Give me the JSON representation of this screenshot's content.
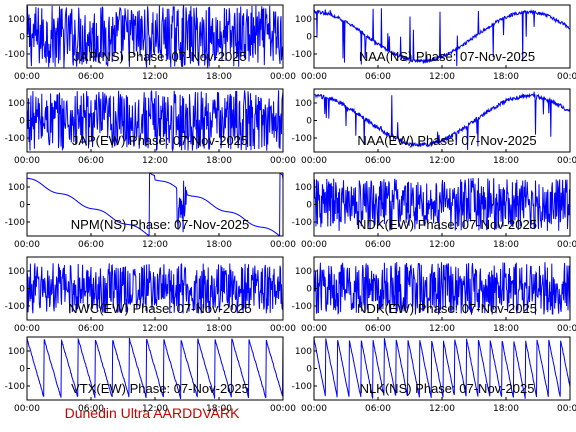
{
  "footer": "Dunedin Ultra AARDDVARK",
  "colors": {
    "trace": "#0000ff",
    "axis": "#000000",
    "footer": "#cc0000"
  },
  "chart_data": [
    {
      "type": "line",
      "title": "JAP(NS) Phase: 07-Nov-2025",
      "xlim": [
        0,
        24
      ],
      "ylim": [
        -180,
        180
      ],
      "x_ticks": [
        "00:00",
        "06:00",
        "12:00",
        "18:00",
        "00:00"
      ],
      "y_ticks": [
        "100",
        "0",
        "-100"
      ],
      "behavior": "noise",
      "density": 1.0
    },
    {
      "type": "line",
      "title": "NAA(NS) Phase: 07-Nov-2025",
      "xlim": [
        0,
        24
      ],
      "ylim": [
        -180,
        180
      ],
      "x_ticks": [
        "00:00",
        "06:00",
        "12:00",
        "18:00",
        "00:00"
      ],
      "y_ticks": [
        "100",
        "0",
        "-100"
      ],
      "behavior": "smooth",
      "density": 0.3
    },
    {
      "type": "line",
      "title": "JAP(EW) Phase: 07-Nov-2025",
      "xlim": [
        0,
        24
      ],
      "ylim": [
        -180,
        180
      ],
      "x_ticks": [
        "00:00",
        "06:00",
        "12:00",
        "18:00",
        "00:00"
      ],
      "y_ticks": [
        "100",
        "0",
        "-100"
      ],
      "behavior": "noise",
      "density": 0.9
    },
    {
      "type": "line",
      "title": "NAA(EW) Phase: 07-Nov-2025",
      "xlim": [
        0,
        24
      ],
      "ylim": [
        -180,
        180
      ],
      "x_ticks": [
        "00:00",
        "06:00",
        "12:00",
        "18:00",
        "00:00"
      ],
      "y_ticks": [
        "100",
        "0",
        "-100"
      ],
      "behavior": "smooth",
      "density": 0.4
    },
    {
      "type": "line",
      "title": "NPM(NS) Phase: 07-Nov-2025",
      "xlim": [
        0,
        24
      ],
      "ylim": [
        -180,
        180
      ],
      "x_ticks": [
        "00:00",
        "06:00",
        "12:00",
        "18:00",
        "00:00"
      ],
      "y_ticks": [
        "100",
        "0",
        "-100"
      ],
      "behavior": "drift",
      "density": 0.1
    },
    {
      "type": "line",
      "title": "NDK(EW) Phase: 07-Nov-2025",
      "xlim": [
        0,
        24
      ],
      "ylim": [
        -180,
        180
      ],
      "x_ticks": [
        "00:00",
        "06:00",
        "12:00",
        "18:00",
        "00:00"
      ],
      "y_ticks": [
        "100",
        "0",
        "-100"
      ],
      "behavior": "noise",
      "density": 0.6
    },
    {
      "type": "line",
      "title": "NWC(EW) Phase: 07-Nov-2025",
      "xlim": [
        0,
        24
      ],
      "ylim": [
        -180,
        180
      ],
      "x_ticks": [
        "00:00",
        "06:00",
        "12:00",
        "18:00",
        "00:00"
      ],
      "y_ticks": [
        "100",
        "0",
        "-100"
      ],
      "behavior": "noise",
      "density": 0.5
    },
    {
      "type": "line",
      "title": "NDK(EW) Phase: 07-Nov-2025",
      "xlim": [
        0,
        24
      ],
      "ylim": [
        -180,
        180
      ],
      "x_ticks": [
        "00:00",
        "06:00",
        "12:00",
        "18:00",
        "00:00"
      ],
      "y_ticks": [
        "100",
        "0",
        "-100"
      ],
      "behavior": "noise",
      "density": 0.6
    },
    {
      "type": "line",
      "title": "VTX(EW) Phase: 07-Nov-2025",
      "xlim": [
        0,
        24
      ],
      "ylim": [
        -180,
        180
      ],
      "x_ticks": [
        "00:00",
        "06:00",
        "12:00",
        "18:00",
        "00:00"
      ],
      "y_ticks": [
        "100",
        "0",
        "-100"
      ],
      "behavior": "sawtooth",
      "density": 0.2
    },
    {
      "type": "line",
      "title": "NLK(NS) Phase: 07-Nov-2025",
      "xlim": [
        0,
        24
      ],
      "ylim": [
        -180,
        180
      ],
      "x_ticks": [
        "00:00",
        "06:00",
        "12:00",
        "18:00",
        "00:00"
      ],
      "y_ticks": [
        "100",
        "0",
        "-100"
      ],
      "behavior": "sawtooth",
      "density": 0.1
    }
  ]
}
